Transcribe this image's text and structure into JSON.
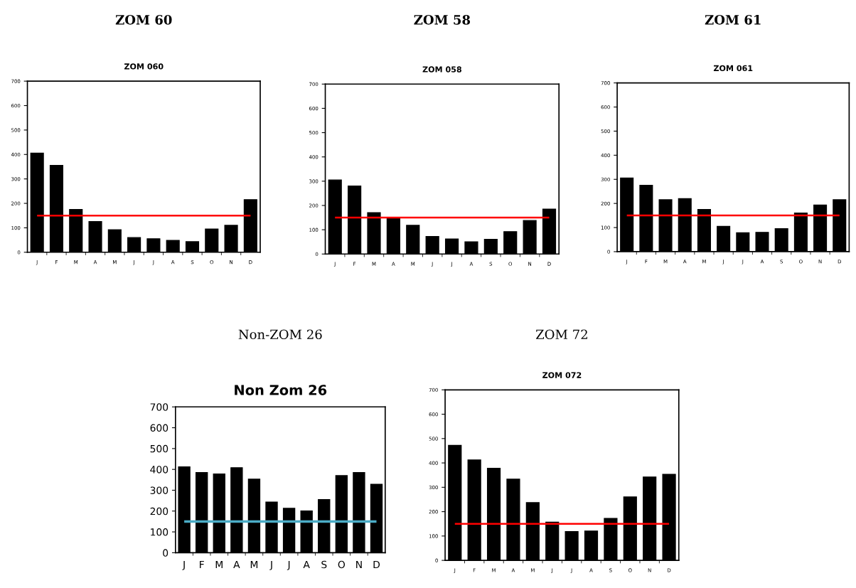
{
  "chart_data": [
    {
      "type": "bar",
      "title": "ZOM 60",
      "subtitle": "ZOM 060",
      "categories": [
        "J",
        "F",
        "M",
        "A",
        "M",
        "J",
        "J",
        "A",
        "S",
        "O",
        "N",
        "D"
      ],
      "values": [
        405,
        355,
        175,
        125,
        92,
        60,
        55,
        48,
        43,
        95,
        110,
        215
      ],
      "color": "#000000",
      "ylim": [
        0,
        700
      ],
      "yticks": [
        0,
        100,
        200,
        300,
        400,
        500,
        600,
        700
      ],
      "grid": false,
      "legend": false,
      "ref_lines": [
        {
          "axis": "y",
          "value": 150,
          "color": "#ff0000"
        }
      ]
    },
    {
      "type": "bar",
      "title": "ZOM 58",
      "subtitle": "ZOM 058",
      "categories": [
        "J",
        "F",
        "M",
        "A",
        "M",
        "J",
        "J",
        "A",
        "S",
        "O",
        "N",
        "D"
      ],
      "values": [
        305,
        280,
        170,
        145,
        118,
        72,
        62,
        50,
        60,
        92,
        138,
        185
      ],
      "color": "#000000",
      "ylim": [
        0,
        700
      ],
      "yticks": [
        0,
        100,
        200,
        300,
        400,
        500,
        600,
        700
      ],
      "grid": false,
      "legend": false,
      "ref_lines": [
        {
          "axis": "y",
          "value": 150,
          "color": "#ff0000"
        }
      ]
    },
    {
      "type": "bar",
      "title": "ZOM 61",
      "subtitle": "ZOM 061",
      "categories": [
        "J",
        "F",
        "M",
        "A",
        "M",
        "J",
        "J",
        "A",
        "S",
        "O",
        "N",
        "D"
      ],
      "values": [
        305,
        275,
        215,
        220,
        175,
        105,
        78,
        80,
        95,
        160,
        193,
        215
      ],
      "color": "#000000",
      "ylim": [
        0,
        700
      ],
      "yticks": [
        0,
        100,
        200,
        300,
        400,
        500,
        600,
        700
      ],
      "grid": false,
      "legend": false,
      "ref_lines": [
        {
          "axis": "y",
          "value": 150,
          "color": "#ff0000"
        }
      ]
    },
    {
      "type": "bar",
      "title": "Non-ZOM 26",
      "subtitle": "Non Zom 26",
      "categories": [
        "J",
        "F",
        "M",
        "A",
        "M",
        "J",
        "J",
        "A",
        "S",
        "O",
        "N",
        "D"
      ],
      "values": [
        412,
        385,
        378,
        408,
        353,
        243,
        213,
        200,
        255,
        370,
        385,
        328
      ],
      "color": "#000000",
      "ylim": [
        0,
        700
      ],
      "yticks": [
        0,
        100,
        200,
        300,
        400,
        500,
        600,
        700
      ],
      "grid": false,
      "legend": false,
      "ref_lines": [
        {
          "axis": "y",
          "value": 150,
          "color": "#4bacc6"
        }
      ]
    },
    {
      "type": "bar",
      "title": "ZOM 72",
      "subtitle": "ZOM 072",
      "categories": [
        "J",
        "F",
        "M",
        "A",
        "M",
        "J",
        "J",
        "A",
        "S",
        "O",
        "N",
        "D"
      ],
      "values": [
        472,
        412,
        378,
        333,
        237,
        157,
        118,
        120,
        172,
        260,
        342,
        353
      ],
      "color": "#000000",
      "ylim": [
        0,
        700
      ],
      "yticks": [
        0,
        100,
        200,
        300,
        400,
        500,
        600,
        700
      ],
      "grid": false,
      "legend": false,
      "ref_lines": [
        {
          "axis": "y",
          "value": 150,
          "color": "#ff0000"
        }
      ]
    }
  ]
}
